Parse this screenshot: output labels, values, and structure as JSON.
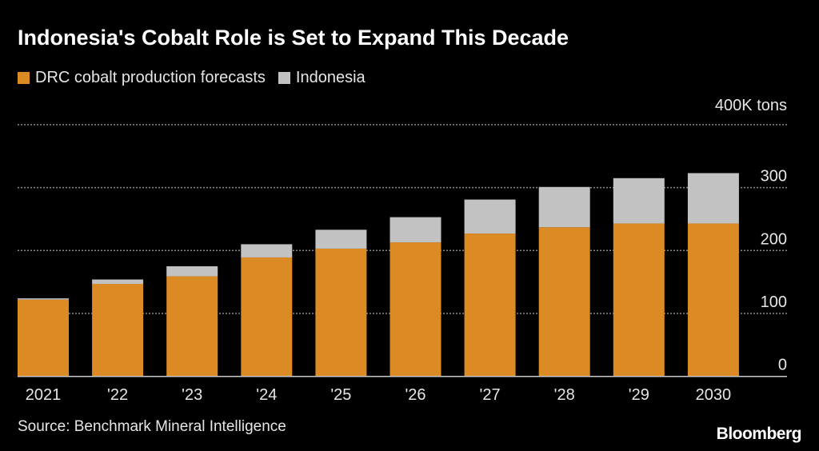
{
  "title": "Indonesia's Cobalt Role is Set to Expand This Decade",
  "source": "Source: Benchmark Mineral Intelligence",
  "logo": "Bloomberg",
  "chart_data": {
    "type": "bar",
    "stacked": true,
    "title": "Indonesia's Cobalt Role is Set to Expand This Decade",
    "unit_label": "400K tons",
    "categories": [
      "2021",
      "'22",
      "'23",
      "'24",
      "'25",
      "'26",
      "'27",
      "'28",
      "'29",
      "2030"
    ],
    "series": [
      {
        "name": "DRC cobalt production forecasts",
        "color": "#dc8a24",
        "values": [
          122,
          147,
          159,
          189,
          203,
          213,
          227,
          237,
          243,
          243
        ]
      },
      {
        "name": "Indonesia",
        "color": "#c2c2c2",
        "values": [
          2,
          7,
          16,
          21,
          30,
          40,
          54,
          64,
          72,
          80
        ]
      }
    ],
    "y_ticks": [
      "0",
      "100",
      "200",
      "300",
      "400K tons"
    ],
    "y_tick_values": [
      0,
      100,
      200,
      300,
      400
    ],
    "ylim": [
      0,
      400
    ],
    "y_axis_position": "right",
    "grid": true,
    "legend_position": "top-left"
  }
}
